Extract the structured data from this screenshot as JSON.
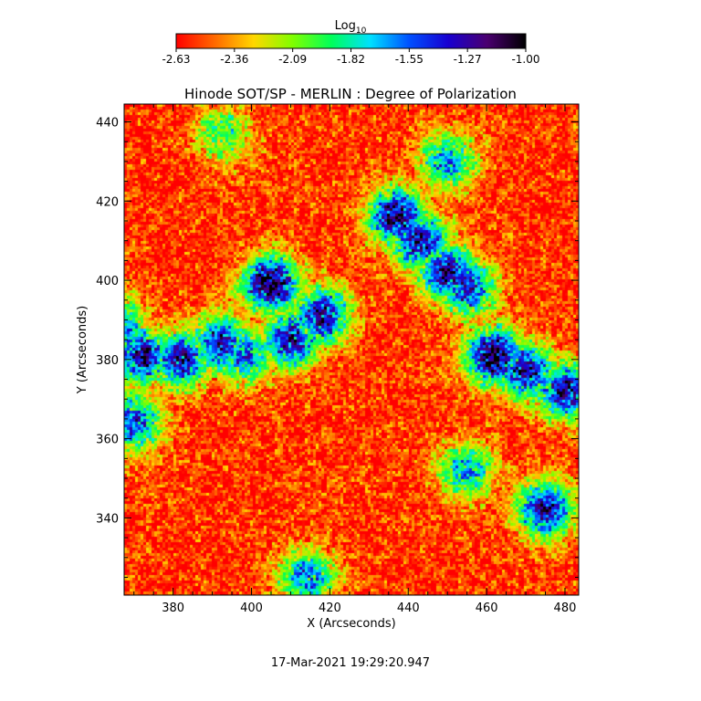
{
  "chart_data": {
    "type": "heatmap",
    "title": "Hinode SOT/SP - MERLIN : Degree of Polarization",
    "xlabel": "X (Arcseconds)",
    "ylabel": "Y (Arcseconds)",
    "xlim": [
      367.5,
      483.5
    ],
    "ylim": [
      320.5,
      444.5
    ],
    "x_ticks": [
      "380",
      "400",
      "420",
      "440",
      "460",
      "480"
    ],
    "y_ticks": [
      "440",
      "420",
      "400",
      "380",
      "360",
      "340"
    ],
    "colorbar": {
      "label_base": "Log",
      "label_sub": "10",
      "range": [
        -2.63,
        -1.0
      ],
      "ticks": [
        "-2.63",
        "-2.36",
        "-2.09",
        "-1.82",
        "-1.55",
        "-1.27",
        "-1.00"
      ],
      "colors": [
        "#ff0000",
        "#ff6a00",
        "#ffd700",
        "#7fff00",
        "#00ff5a",
        "#00e0ff",
        "#0050ff",
        "#1800d0",
        "#4a0070",
        "#000000"
      ]
    },
    "grid": false,
    "background_level": -2.55,
    "features": [
      {
        "x": 372,
        "y": 381,
        "level": -1.25
      },
      {
        "x": 382,
        "y": 380,
        "level": -1.3
      },
      {
        "x": 392,
        "y": 384,
        "level": -1.35
      },
      {
        "x": 405,
        "y": 399,
        "level": -1.05
      },
      {
        "x": 410,
        "y": 385,
        "level": -1.3
      },
      {
        "x": 418,
        "y": 391,
        "level": -1.3
      },
      {
        "x": 398,
        "y": 381,
        "level": -1.5
      },
      {
        "x": 365,
        "y": 388,
        "level": -1.4
      },
      {
        "x": 437,
        "y": 416,
        "level": -1.15
      },
      {
        "x": 443,
        "y": 410,
        "level": -1.3
      },
      {
        "x": 450,
        "y": 402,
        "level": -1.25
      },
      {
        "x": 455,
        "y": 398,
        "level": -1.4
      },
      {
        "x": 462,
        "y": 381,
        "level": -1.05
      },
      {
        "x": 470,
        "y": 377,
        "level": -1.25
      },
      {
        "x": 480,
        "y": 372,
        "level": -1.25
      },
      {
        "x": 450,
        "y": 430,
        "level": -1.6
      },
      {
        "x": 370,
        "y": 364,
        "level": -1.5
      },
      {
        "x": 475,
        "y": 342,
        "level": -1.3
      },
      {
        "x": 455,
        "y": 352,
        "level": -1.7
      },
      {
        "x": 414,
        "y": 325,
        "level": -1.6
      },
      {
        "x": 393,
        "y": 437,
        "level": -1.9
      }
    ],
    "footer_timestamp": "17-Mar-2021 19:29:20.947"
  }
}
